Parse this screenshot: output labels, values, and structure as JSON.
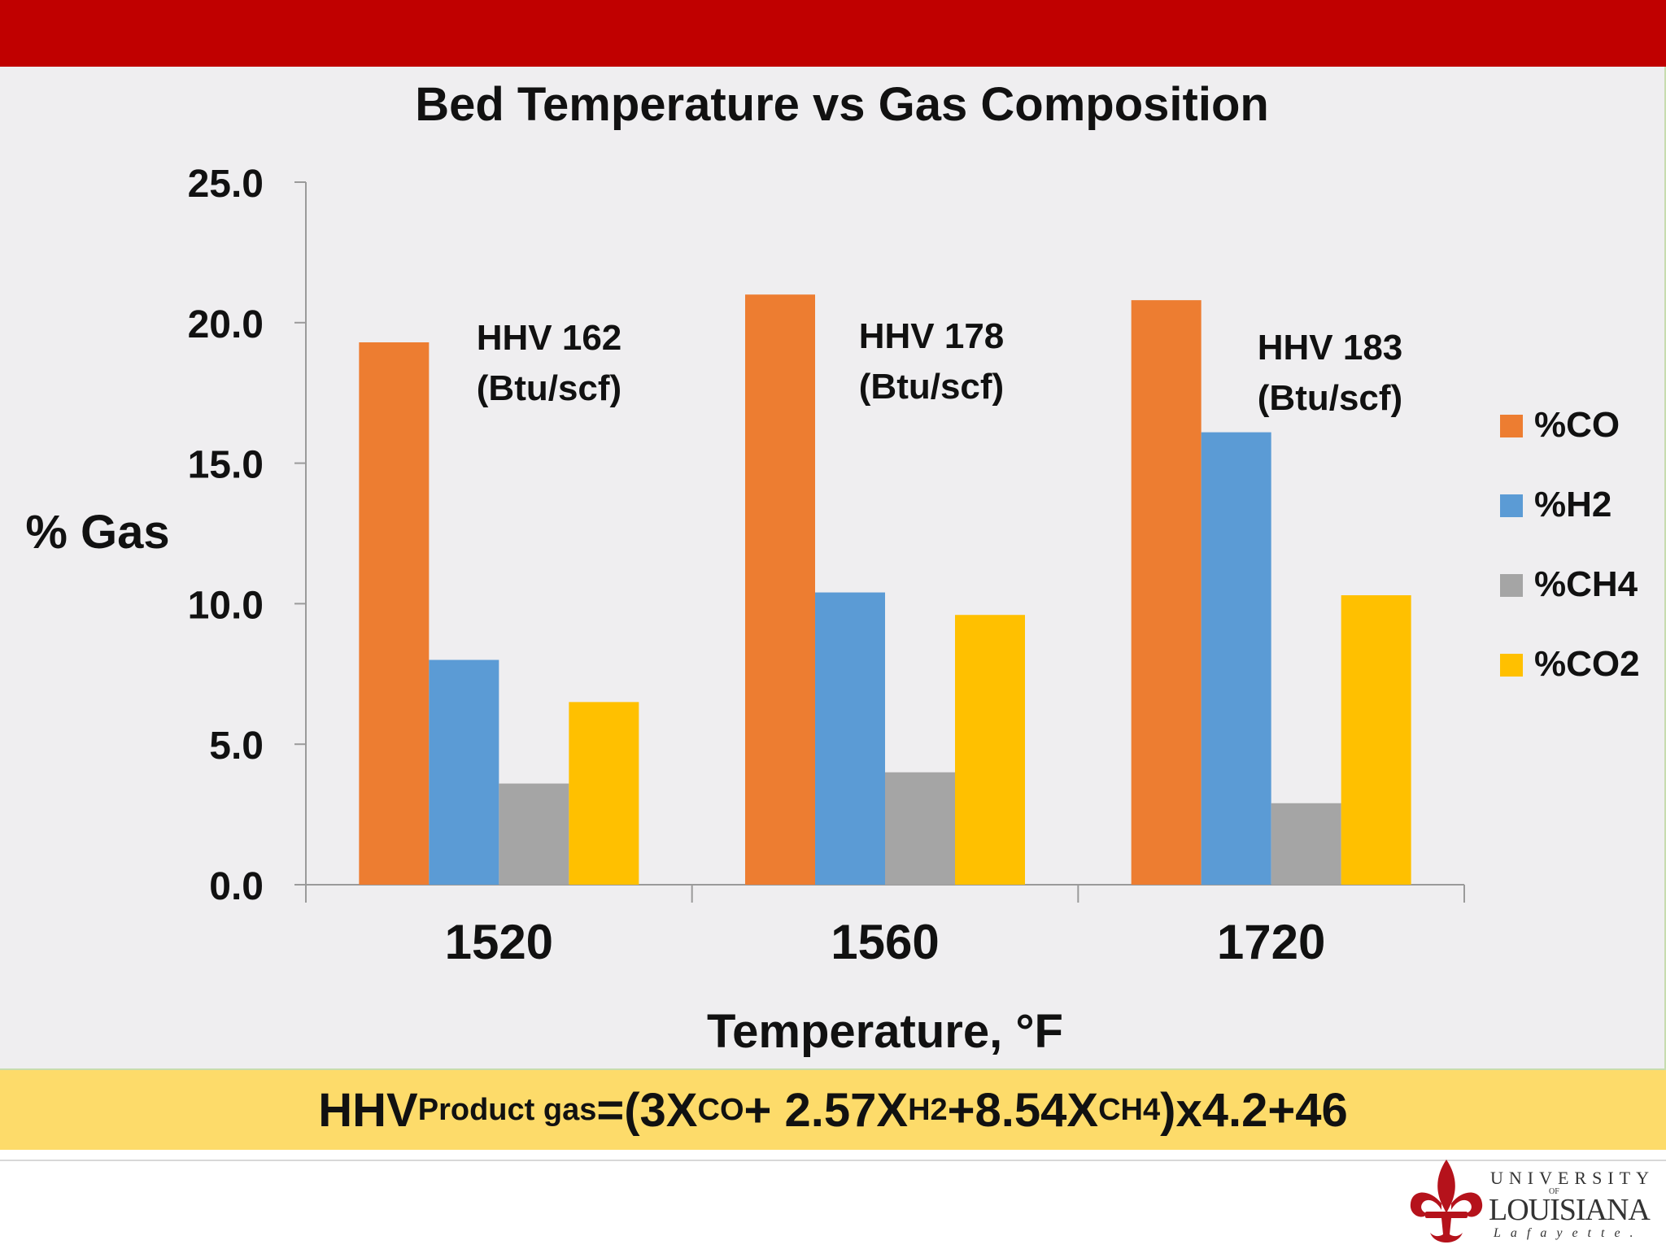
{
  "chart_data": {
    "type": "bar",
    "title": "Bed Temperature vs Gas Composition",
    "xlabel": "Temperature, °F",
    "ylabel": "% Gas",
    "categories": [
      "1520",
      "1560",
      "1720"
    ],
    "ylim": [
      0,
      25
    ],
    "yticks": [
      "0.0",
      "5.0",
      "10.0",
      "15.0",
      "20.0",
      "25.0"
    ],
    "grid": false,
    "legend_position": "right",
    "series": [
      {
        "name": "%CO",
        "color": "#ed7d31",
        "values": [
          19.3,
          21.0,
          20.8
        ]
      },
      {
        "name": "%H2",
        "color": "#5b9bd5",
        "values": [
          8.0,
          10.4,
          16.1
        ]
      },
      {
        "name": "%CH4",
        "color": "#a5a5a5",
        "values": [
          3.6,
          4.0,
          2.9
        ]
      },
      {
        "name": "%CO2",
        "color": "#ffc000",
        "values": [
          6.5,
          9.6,
          10.3
        ]
      }
    ],
    "annotations": [
      {
        "line1": "HHV 162",
        "line2": "(Btu/scf)"
      },
      {
        "line1": "HHV 178",
        "line2": "(Btu/scf)"
      },
      {
        "line1": "HHV 183",
        "line2": "(Btu/scf)"
      }
    ]
  },
  "formula": {
    "hhv": "HHV",
    "sub_product": "Product gas",
    "part1": "=(3X",
    "sub_co": "CO",
    "part2": "+ 2.57X",
    "sub_h2": "H2",
    "part3": "+8.54X",
    "sub_ch4": "CH4",
    "part4": ")x4.2+46"
  },
  "logo": {
    "university": "UNIVERSITY",
    "of": "OF",
    "louisiana": "LOUISIANA",
    "lafayette": "Lafayette."
  },
  "colors": {
    "banner": "#c00000",
    "panel": "#efeef0",
    "formula_bg": "#fddb6a",
    "logo_red": "#b5121b"
  }
}
